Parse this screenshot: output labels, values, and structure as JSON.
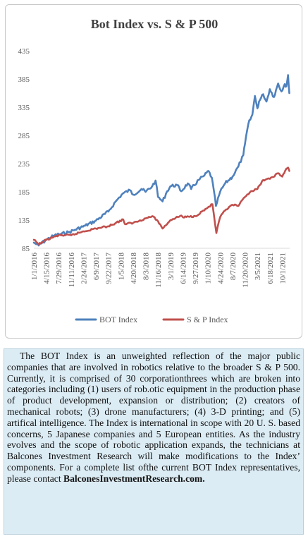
{
  "chart_data": {
    "type": "line",
    "title": "Bot Index vs. S & P 500",
    "xlabel": "",
    "ylabel": "",
    "ylim": [
      85,
      435
    ],
    "yticks": [
      85,
      135,
      185,
      235,
      285,
      335,
      385,
      435
    ],
    "xtick_labels": [
      "1/1/2016",
      "4/15/2016",
      "7/29/2016",
      "11/11/2016",
      "2/24/2017",
      "6/9/2017",
      "9/22/2017",
      "1/5/2018",
      "4/20/2018",
      "8/3/2018",
      "11/16/2018",
      "3/1/2019",
      "6/14/2019",
      "9/27/2019",
      "1/10/2020",
      "4/24/2020",
      "8/7/2020",
      "11/20/2020",
      "3/5/2021",
      "6/18/2021",
      "10/1/2021"
    ],
    "x": [
      "2016-01-01",
      "2016-04-15",
      "2016-07-29",
      "2016-11-11",
      "2017-02-24",
      "2017-06-09",
      "2017-09-22",
      "2018-01-05",
      "2018-04-20",
      "2018-08-03",
      "2018-11-16",
      "2019-03-01",
      "2019-06-14",
      "2019-09-27",
      "2020-01-10",
      "2020-04-24",
      "2020-08-07",
      "2020-11-20",
      "2021-03-05",
      "2021-06-18",
      "2021-10-01"
    ],
    "grid": false,
    "legend": "bottom",
    "series": [
      {
        "name": "BOT Index",
        "color": "#4f81bd",
        "x": [
          "2016-01-01",
          "2016-02-11",
          "2016-04-15",
          "2016-06-24",
          "2016-08-12",
          "2016-10-28",
          "2016-12-16",
          "2017-03-10",
          "2017-06-09",
          "2017-09-22",
          "2017-12-01",
          "2018-01-22",
          "2018-03-23",
          "2018-04-20",
          "2018-06-29",
          "2018-08-03",
          "2018-09-28",
          "2018-10-26",
          "2018-11-16",
          "2018-12-24",
          "2019-02-01",
          "2019-03-01",
          "2019-04-26",
          "2019-05-31",
          "2019-07-26",
          "2019-08-23",
          "2019-10-25",
          "2019-12-13",
          "2020-01-17",
          "2020-02-14",
          "2020-03-20",
          "2020-04-24",
          "2020-06-05",
          "2020-08-07",
          "2020-09-25",
          "2020-11-06",
          "2020-11-20",
          "2020-12-18",
          "2021-01-22",
          "2021-02-12",
          "2021-03-05",
          "2021-03-19",
          "2021-04-23",
          "2021-05-21",
          "2021-06-18",
          "2021-07-23",
          "2021-08-27",
          "2021-09-24",
          "2021-10-22",
          "2021-11-05",
          "2021-11-19",
          "2021-11-30"
        ],
        "values": [
          95,
          90,
          100,
          108,
          110,
          114,
          118,
          125,
          134,
          150,
          170,
          182,
          188,
          180,
          190,
          185,
          195,
          205,
          176,
          168,
          186,
          195,
          197,
          186,
          200,
          190,
          206,
          214,
          222,
          210,
          160,
          185,
          200,
          212,
          230,
          250,
          270,
          305,
          322,
          355,
          333,
          345,
          358,
          345,
          367,
          353,
          377,
          363,
          376,
          372,
          392,
          360
        ]
      },
      {
        "name": "S & P Index",
        "color": "#c0504d",
        "x": [
          "2016-01-01",
          "2016-02-11",
          "2016-04-15",
          "2016-07-29",
          "2016-11-11",
          "2017-02-24",
          "2017-06-09",
          "2017-09-22",
          "2018-01-26",
          "2018-02-09",
          "2018-04-20",
          "2018-08-03",
          "2018-09-28",
          "2018-11-16",
          "2018-12-24",
          "2019-03-01",
          "2019-05-31",
          "2019-06-14",
          "2019-09-27",
          "2020-01-10",
          "2020-02-19",
          "2020-03-23",
          "2020-04-24",
          "2020-06-05",
          "2020-08-07",
          "2020-09-25",
          "2020-11-20",
          "2021-01-08",
          "2021-03-05",
          "2021-04-23",
          "2021-06-18",
          "2021-08-27",
          "2021-10-01",
          "2021-11-05",
          "2021-11-19",
          "2021-11-30"
        ],
        "values": [
          100,
          92,
          100,
          108,
          108,
          115,
          120,
          124,
          136,
          128,
          130,
          138,
          142,
          133,
          120,
          135,
          143,
          140,
          142,
          157,
          163,
          112,
          140,
          152,
          162,
          160,
          176,
          186,
          190,
          206,
          208,
          218,
          212,
          226,
          228,
          222
        ]
      }
    ]
  },
  "description": {
    "body": "The BOT Index is an unweighted reflection of the major public companies that are involved in robotics relative to the broader S & P 500. Currently, it is comprised of 30 corporationthrees which are broken into categories including (1) users of rob.otic equipment in the production phase of product development, expansion or distribution; (2) creators of mechanical robots; (3) drone manufacturers; (4) 3-D printing; and (5) artifical intelligence. The Index is international in scope with 20 U. S. based concerns, 5 Japanese companies and 5 European entities. As the industry evolves and the scope of robotic application expands, the technicians at Balcones Investment Research will make modifications to the Index’ components. For a complete list ofthe current BOT Index representatives, please contact",
    "link": "BalconesInvestmentResearch.com."
  }
}
